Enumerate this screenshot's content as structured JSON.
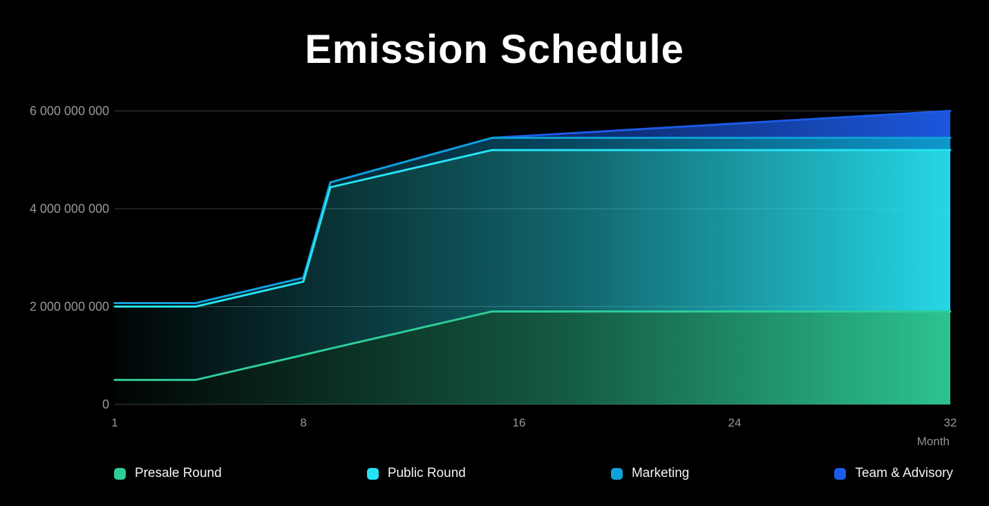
{
  "chart_data": {
    "type": "area",
    "stacked": true,
    "title": "Emission Schedule",
    "xlabel": "Month",
    "ylabel": "",
    "grid": "horizontal",
    "legend_position": "bottom",
    "xlim": [
      1,
      32
    ],
    "ylim": [
      0,
      6000000000
    ],
    "x_months": [
      1,
      4,
      8,
      9,
      15,
      32
    ],
    "x_ticks": [
      1,
      8,
      16,
      24,
      32
    ],
    "y_ticks": [
      {
        "value": 0,
        "label": "0"
      },
      {
        "value": 2000000000,
        "label": "2 000 000 000"
      },
      {
        "value": 4000000000,
        "label": "4 000 000 000"
      },
      {
        "value": 6000000000,
        "label": "6 000 000 000"
      }
    ],
    "series": [
      {
        "name": "Presale Round",
        "color": "#2ecd9a",
        "values": [
          500000000,
          500000000,
          1010000000,
          1140000000,
          1900000000,
          1900000000
        ]
      },
      {
        "name": "Public Round",
        "color": "#27e2f2",
        "values": [
          1500000000,
          1500000000,
          1500000000,
          3300000000,
          3300000000,
          3300000000
        ]
      },
      {
        "name": "Marketing",
        "color": "#0fa0d8",
        "values": [
          70000000,
          70000000,
          80000000,
          100000000,
          250000000,
          250000000
        ]
      },
      {
        "name": "Team & Advisory",
        "color": "#1d5be8",
        "values": [
          0,
          0,
          0,
          0,
          0,
          550000000
        ]
      }
    ],
    "total_supply_end": 6000000000
  },
  "colors": {
    "background": "#000000",
    "title_text": "#ffffff",
    "axis_text": "#94999e",
    "gridline": "rgba(255,255,255,0.25)"
  }
}
